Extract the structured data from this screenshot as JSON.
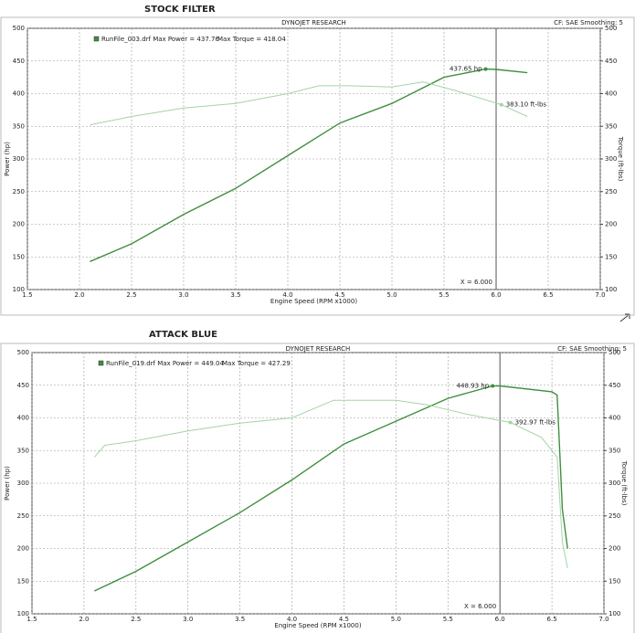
{
  "chart_data": [
    {
      "type": "line",
      "heading": "STOCK FILTER",
      "title": "DYNOJET RESEARCH",
      "subtitle": "CF: SAE  Smoothing: 5",
      "legend_file": "RunFile_003.drf Max Power = 437.76",
      "legend_torque": "Max Torque = 418.04",
      "xlabel": "Engine Speed (RPM x1000)",
      "ylabel": "Power (hp)",
      "y2label": "Torque (ft-lbs)",
      "xlim": [
        1.5,
        7.0
      ],
      "xticks": [
        1.5,
        {
          "value": 2,
          "label": "2.0"
        },
        2.5,
        {
          "value": 3,
          "label": "3.0"
        },
        3.5,
        {
          "value": 4,
          "label": "4.0"
        },
        4.5,
        {
          "value": 5,
          "label": "5.0"
        },
        5.5,
        {
          "value": 6,
          "label": "6.0"
        },
        6.5,
        {
          "value": 7,
          "label": "7.0"
        }
      ],
      "ylim": [
        100,
        500
      ],
      "yticks": [
        100,
        150,
        200,
        250,
        300,
        350,
        400,
        450,
        500
      ],
      "y2lim": [
        100,
        500
      ],
      "y2ticks": [
        100,
        150,
        200,
        250,
        300,
        350,
        400,
        450,
        500
      ],
      "grid": true,
      "series": [
        {
          "color": "#3f8f3f",
          "x": [
            2.1,
            2.5,
            3.0,
            3.5,
            4.0,
            4.5,
            5.0,
            5.5,
            5.9,
            6.0,
            6.3
          ],
          "values": [
            143,
            170,
            215,
            255,
            305,
            355,
            385,
            425,
            437.65,
            437,
            432
          ]
        },
        {
          "color": "#a6d3a6",
          "axis": "y2",
          "x": [
            2.1,
            2.5,
            3.0,
            3.5,
            4.0,
            4.3,
            4.6,
            5.0,
            5.3,
            5.6,
            6.05,
            6.3
          ],
          "values": [
            352,
            365,
            378,
            385,
            400,
            412,
            412,
            410,
            418,
            405,
            383.1,
            365
          ]
        }
      ],
      "annotations": [
        {
          "text": "437.65 hp",
          "x": 5.9,
          "y": 437.65
        },
        {
          "text": "383.10 ft-lbs",
          "x": 6.05,
          "y": 383.1,
          "axis": "y2"
        }
      ],
      "cursor": {
        "label": "X = 6.000",
        "x": 6
      }
    },
    {
      "type": "line",
      "heading": "ATTACK BLUE",
      "title": "DYNOJET RESEARCH",
      "subtitle": "CF: SAE  Smoothing: 5",
      "legend_file": "RunFile_019.drf Max Power = 449.04",
      "legend_torque": "Max Torque = 427.29",
      "xlabel": "Engine Speed (RPM x1000)",
      "ylabel": "Power (hp)",
      "y2label": "Torque (ft-lbs)",
      "xlim": [
        1.5,
        7.0
      ],
      "xticks": [
        1.5,
        {
          "value": 2,
          "label": "2.0"
        },
        2.5,
        {
          "value": 3,
          "label": "3.0"
        },
        3.5,
        {
          "value": 4,
          "label": "4.0"
        },
        4.5,
        {
          "value": 5,
          "label": "5.0"
        },
        5.5,
        {
          "value": 6,
          "label": "6.0"
        },
        6.5,
        {
          "value": 7,
          "label": "7.0"
        }
      ],
      "ylim": [
        100,
        500
      ],
      "yticks": [
        100,
        150,
        200,
        250,
        300,
        350,
        400,
        450,
        500
      ],
      "y2lim": [
        100,
        500
      ],
      "y2ticks": [
        100,
        150,
        200,
        250,
        300,
        350,
        400,
        450,
        500
      ],
      "grid": true,
      "series": [
        {
          "color": "#3f8f3f",
          "x": [
            2.1,
            2.5,
            3.0,
            3.5,
            4.0,
            4.5,
            5.0,
            5.5,
            5.93,
            6.0,
            6.5,
            6.55,
            6.6,
            6.65
          ],
          "values": [
            135,
            165,
            210,
            255,
            305,
            360,
            395,
            430,
            448.93,
            449,
            440,
            435,
            260,
            200
          ]
        },
        {
          "color": "#a6d3a6",
          "axis": "y2",
          "x": [
            2.1,
            2.2,
            2.5,
            3.0,
            3.5,
            4.0,
            4.4,
            5.0,
            5.3,
            5.7,
            6.1,
            6.4,
            6.55,
            6.6,
            6.65
          ],
          "values": [
            340,
            358,
            365,
            380,
            392,
            400,
            427,
            427,
            420,
            405,
            392.97,
            370,
            340,
            210,
            170
          ]
        }
      ],
      "annotations": [
        {
          "text": "448.93 hp",
          "x": 5.93,
          "y": 448.93
        },
        {
          "text": "392.97 ft-lbs",
          "x": 6.1,
          "y": 392.97,
          "axis": "y2"
        }
      ],
      "cursor": {
        "label": "X = 6.000",
        "x": 6
      }
    }
  ]
}
